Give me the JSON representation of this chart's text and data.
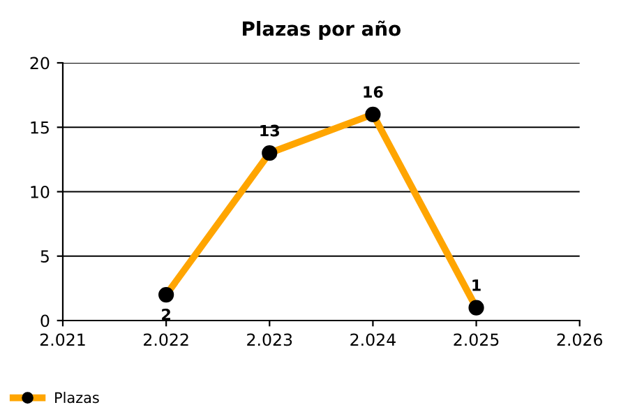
{
  "chart_data": {
    "type": "line",
    "title": "Plazas por año",
    "x": [
      2022,
      2023,
      2024,
      2025
    ],
    "series": [
      {
        "name": "Plazas",
        "color": "#ffa500",
        "values": [
          2,
          13,
          16,
          1
        ]
      }
    ],
    "xlim": [
      2021,
      2026
    ],
    "xticks": [
      {
        "value": 2021,
        "label": "2.021"
      },
      {
        "value": 2022,
        "label": "2.022"
      },
      {
        "value": 2023,
        "label": "2.023"
      },
      {
        "value": 2024,
        "label": "2.024"
      },
      {
        "value": 2025,
        "label": "2.025"
      },
      {
        "value": 2026,
        "label": "2.026"
      }
    ],
    "ylim": [
      0,
      20
    ],
    "yticks": [
      0,
      5,
      10,
      15,
      20
    ],
    "grid": "y",
    "legend": "bottom left",
    "marker": "circle",
    "line_style": "solid",
    "data_labels": true
  }
}
